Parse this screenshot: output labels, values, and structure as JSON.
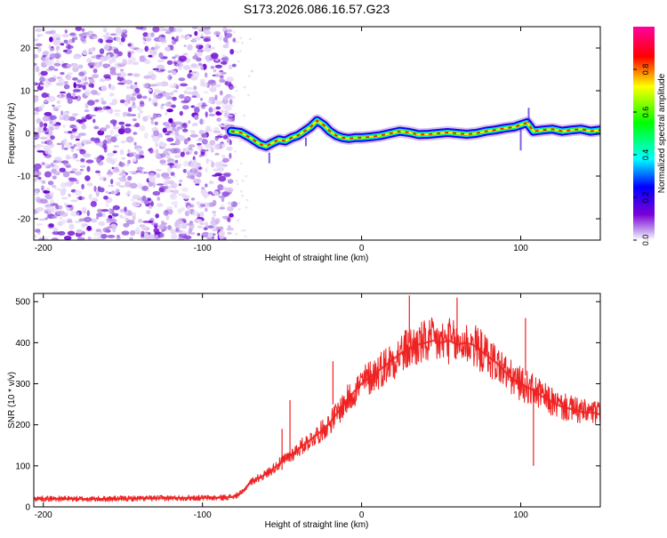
{
  "title": "S173.2026.086.16.57.G23",
  "chart_data": [
    {
      "type": "heatmap",
      "xlabel": "Height of straight line (km)",
      "ylabel": "Frequency (Hz)",
      "xlim": [
        -206,
        150
      ],
      "ylim": [
        -25,
        25
      ],
      "xticks": [
        -200,
        -100,
        0,
        100
      ],
      "yticks": [
        -20,
        -10,
        0,
        10,
        20
      ],
      "colorbar": {
        "label": "Normalized spectral amplitude",
        "range": [
          0,
          1
        ],
        "ticks": [
          0,
          0.2,
          0.4,
          0.6,
          0.8
        ],
        "tick_labels": [
          "0.0",
          "0.2",
          "0.4",
          "0.6",
          "0.8"
        ],
        "colors": [
          "#ffffff",
          "#7a00d8",
          "#0000ff",
          "#00ffff",
          "#00ff00",
          "#ffff00",
          "#ff0000",
          "#ff00a0"
        ]
      },
      "noise_region": {
        "x_range": [
          -206,
          -80
        ],
        "y_range": [
          -25,
          25
        ],
        "amplitude": 0.25
      },
      "signal_track": {
        "x": [
          -82,
          -76,
          -70,
          -64,
          -60,
          -56,
          -52,
          -48,
          -44,
          -40,
          -36,
          -32,
          -28,
          -24,
          -20,
          -16,
          -12,
          -8,
          -4,
          0,
          6,
          12,
          18,
          24,
          30,
          36,
          42,
          48,
          54,
          60,
          66,
          72,
          78,
          84,
          90,
          96,
          100,
          104,
          108,
          114,
          120,
          126,
          132,
          138,
          144,
          150
        ],
        "frequency": [
          0.5,
          0.2,
          -1.0,
          -2.5,
          -3.0,
          -2.2,
          -1.5,
          -1.8,
          -1.0,
          -0.5,
          0.5,
          1.5,
          3.0,
          2.0,
          0.5,
          -0.5,
          -1.0,
          -1.2,
          -1.0,
          -1.0,
          -0.8,
          -0.5,
          0.0,
          0.5,
          0.2,
          -0.3,
          -0.2,
          0.0,
          0.2,
          0.0,
          -0.2,
          0.0,
          0.5,
          0.8,
          1.2,
          1.5,
          2.0,
          2.5,
          0.5,
          0.8,
          1.0,
          0.5,
          0.8,
          1.0,
          0.5,
          0.8
        ]
      }
    },
    {
      "type": "line",
      "xlabel": "Height of straight line (km)",
      "ylabel": "SNR (10 * v/v)",
      "xlim": [
        -206,
        150
      ],
      "ylim": [
        0,
        520
      ],
      "xticks": [
        -200,
        -100,
        0,
        100
      ],
      "yticks": [
        0,
        100,
        200,
        300,
        400,
        500
      ],
      "color": "#ee2222",
      "series": [
        {
          "name": "SNR",
          "x": [
            -206,
            -190,
            -170,
            -150,
            -130,
            -110,
            -90,
            -80,
            -75,
            -70,
            -65,
            -60,
            -55,
            -50,
            -45,
            -40,
            -35,
            -30,
            -25,
            -20,
            -15,
            -10,
            -5,
            0,
            5,
            10,
            15,
            20,
            25,
            30,
            35,
            40,
            45,
            50,
            55,
            60,
            65,
            70,
            75,
            80,
            85,
            90,
            95,
            100,
            105,
            110,
            115,
            120,
            125,
            130,
            135,
            140,
            145,
            150
          ],
          "y": [
            20,
            20,
            19,
            20,
            21,
            22,
            22,
            25,
            35,
            60,
            70,
            80,
            95,
            110,
            125,
            140,
            155,
            170,
            185,
            205,
            230,
            255,
            280,
            300,
            315,
            330,
            345,
            360,
            375,
            385,
            395,
            400,
            405,
            400,
            405,
            395,
            400,
            395,
            380,
            365,
            350,
            330,
            310,
            300,
            290,
            280,
            265,
            255,
            245,
            240,
            235,
            230,
            230,
            225
          ]
        }
      ]
    }
  ]
}
